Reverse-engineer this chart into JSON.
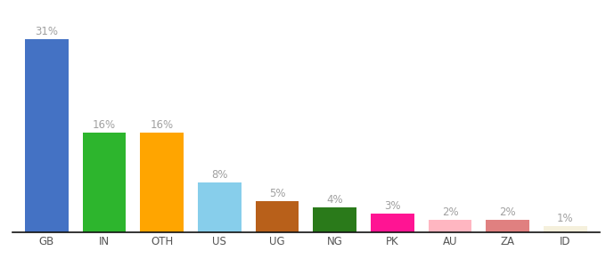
{
  "categories": [
    "GB",
    "IN",
    "OTH",
    "US",
    "UG",
    "NG",
    "PK",
    "AU",
    "ZA",
    "ID"
  ],
  "values": [
    31,
    16,
    16,
    8,
    5,
    4,
    3,
    2,
    2,
    1
  ],
  "bar_colors": [
    "#4472c4",
    "#2db52d",
    "#ffa500",
    "#87ceeb",
    "#b8601a",
    "#2a7a1a",
    "#ff1493",
    "#ffb6c1",
    "#e08080",
    "#f5f0dc"
  ],
  "labels": [
    "31%",
    "16%",
    "16%",
    "8%",
    "5%",
    "4%",
    "3%",
    "2%",
    "2%",
    "1%"
  ],
  "label_color": "#a0a0a0",
  "label_fontsize": 8.5,
  "xlabel_fontsize": 8.5,
  "xlabel_color": "#555555",
  "ylim": [
    0,
    36
  ],
  "bar_width": 0.75,
  "background_color": "#ffffff",
  "spine_color": "#111111"
}
